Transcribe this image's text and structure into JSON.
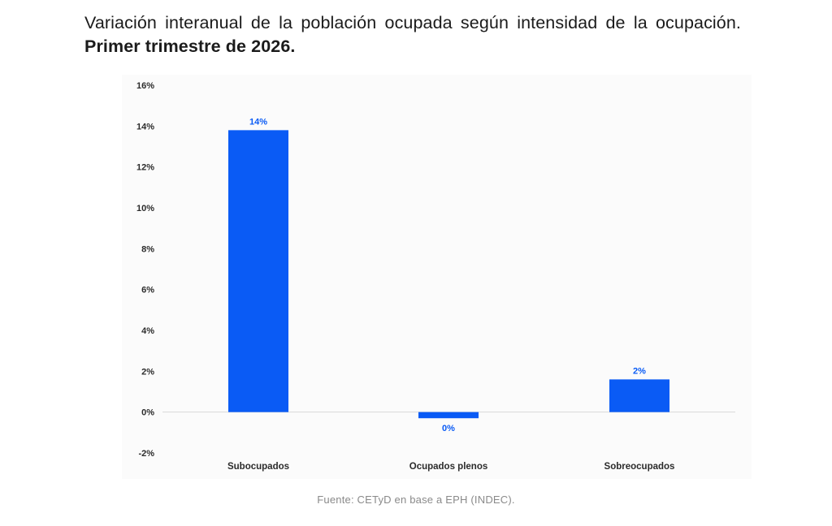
{
  "title": {
    "regular": "Variación interanual de la población ocupada según intensidad de la ocupación.",
    "bold": "Primer trimestre de 2026."
  },
  "source": "Fuente: CETyD en base a EPH (INDEC).",
  "colors": {
    "bar": "#0a5bf5",
    "label": "#0a5bf5",
    "tick": "#2b2b2b",
    "axis": "#d9d9d9"
  },
  "chart_data": {
    "type": "bar",
    "categories": [
      "Subocupados",
      "Ocupados plenos",
      "Sobreocupados"
    ],
    "values": [
      13.8,
      -0.3,
      1.6
    ],
    "data_labels": [
      "14%",
      "0%",
      "2%"
    ],
    "y_ticks": [
      "16%",
      "14%",
      "12%",
      "10%",
      "8%",
      "6%",
      "4%",
      "2%",
      "0%",
      "-2%"
    ],
    "ylim": [
      -2,
      16
    ],
    "grid": false,
    "legend": "none"
  }
}
